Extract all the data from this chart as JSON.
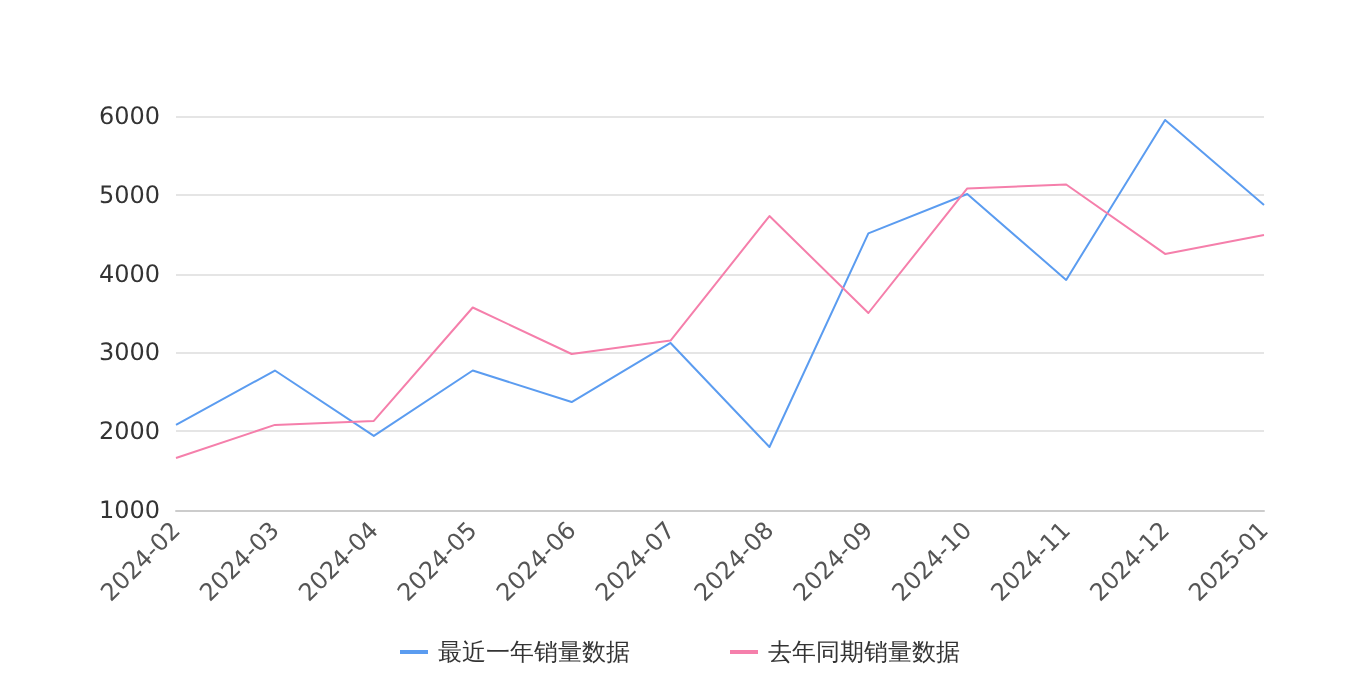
{
  "chart_data": {
    "type": "line",
    "categories": [
      "2024-02",
      "2024-03",
      "2024-04",
      "2024-05",
      "2024-06",
      "2024-07",
      "2024-08",
      "2024-09",
      "2024-10",
      "2024-11",
      "2024-12",
      "2025-01"
    ],
    "series": [
      {
        "name": "最近一年销量数据",
        "color": "#5b9cf0",
        "values": [
          2080,
          2770,
          1940,
          2770,
          2370,
          3120,
          1800,
          4510,
          5010,
          3920,
          5950,
          4870
        ]
      },
      {
        "name": "去年同期销量数据",
        "color": "#f57fab",
        "values": [
          1660,
          2080,
          2130,
          3570,
          2980,
          3150,
          4730,
          3500,
          5080,
          5130,
          4250,
          4490
        ]
      }
    ],
    "ylim": [
      1000,
      6000
    ],
    "yticks": [
      1000,
      2000,
      3000,
      4000,
      5000,
      6000
    ],
    "grid": "y",
    "legend": "bottom",
    "marker": "none",
    "line_style": "solid"
  }
}
